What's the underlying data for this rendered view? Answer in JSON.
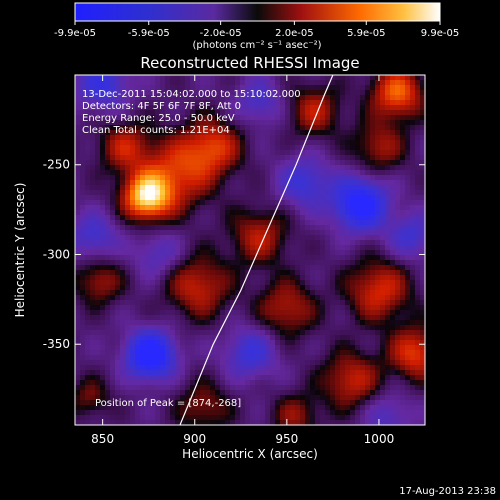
{
  "colorbar": {
    "tick_labels": [
      "-9.9e-05",
      "-5.9e-05",
      "-2.0e-05",
      "2.0e-05",
      "5.9e-05",
      "9.9e-05"
    ],
    "tick_values": [
      -9.9e-05,
      -5.9e-05,
      -2e-05,
      2e-05,
      5.9e-05,
      9.9e-05
    ],
    "range": [
      -9.9e-05,
      9.9e-05
    ],
    "unit_label": "(photons cm⁻² s⁻¹ asec⁻²)"
  },
  "chart_data": {
    "type": "heatmap",
    "title": "Reconstructed RHESSI Image",
    "xlabel": "Heliocentric X (arcsec)",
    "ylabel": "Heliocentric Y (arcsec)",
    "xlim": [
      835,
      1025
    ],
    "ylim": [
      -395,
      -200
    ],
    "xticks": [
      850,
      900,
      950,
      1000
    ],
    "xtick_labels": [
      "850",
      "900",
      "950",
      "1000"
    ],
    "yticks": [
      -250,
      -300,
      -350
    ],
    "ytick_labels": [
      "-250",
      "-300",
      "-350"
    ],
    "info_lines": [
      "13-Dec-2011 15:04:02.000 to 15:10:02.000",
      "Detectors: 4F 5F 6F 7F 8F, Att 0",
      "Energy Range: 25.0 - 50.0 keV",
      "Clean     Total counts: 1.21E+04"
    ],
    "peak_label": "Position of Peak = [874,-268]",
    "peak": [
      874,
      -268
    ],
    "limb_curve": [
      [
        892,
        -395
      ],
      [
        910,
        -350
      ],
      [
        925,
        -320
      ],
      [
        940,
        -285
      ],
      [
        955,
        -250
      ],
      [
        970,
        -212
      ],
      [
        975,
        -200
      ]
    ],
    "blobs": [
      {
        "x": 874,
        "y": -268,
        "amp": 1.0,
        "sigma": 9
      },
      {
        "x": 890,
        "y": -255,
        "amp": 0.55,
        "sigma": 14
      },
      {
        "x": 862,
        "y": -240,
        "amp": 0.45,
        "sigma": 10
      },
      {
        "x": 910,
        "y": -240,
        "amp": 0.55,
        "sigma": 11
      },
      {
        "x": 935,
        "y": -290,
        "amp": 0.45,
        "sigma": 11
      },
      {
        "x": 902,
        "y": -318,
        "amp": 0.5,
        "sigma": 12
      },
      {
        "x": 950,
        "y": -330,
        "amp": 0.45,
        "sigma": 11
      },
      {
        "x": 1000,
        "y": -320,
        "amp": 0.55,
        "sigma": 12
      },
      {
        "x": 1020,
        "y": -355,
        "amp": 0.6,
        "sigma": 10
      },
      {
        "x": 985,
        "y": -370,
        "amp": 0.5,
        "sigma": 11
      },
      {
        "x": 1010,
        "y": -210,
        "amp": 0.7,
        "sigma": 10
      },
      {
        "x": 965,
        "y": -220,
        "amp": 0.45,
        "sigma": 10
      },
      {
        "x": 1000,
        "y": -240,
        "amp": 0.4,
        "sigma": 10
      },
      {
        "x": 848,
        "y": -315,
        "amp": 0.4,
        "sigma": 9
      },
      {
        "x": 905,
        "y": -385,
        "amp": 0.35,
        "sigma": 10
      },
      {
        "x": 955,
        "y": -390,
        "amp": 0.35,
        "sigma": 9
      },
      {
        "x": 843,
        "y": -380,
        "amp": 0.3,
        "sigma": 8
      },
      {
        "x": 876,
        "y": -356,
        "amp": -1.0,
        "sigma": 9
      },
      {
        "x": 990,
        "y": -272,
        "amp": -0.9,
        "sigma": 10
      },
      {
        "x": 850,
        "y": -205,
        "amp": -0.5,
        "sigma": 10
      },
      {
        "x": 960,
        "y": -260,
        "amp": -0.45,
        "sigma": 10
      },
      {
        "x": 930,
        "y": -355,
        "amp": -0.45,
        "sigma": 10
      },
      {
        "x": 845,
        "y": -290,
        "amp": -0.4,
        "sigma": 9
      },
      {
        "x": 1018,
        "y": -290,
        "amp": -0.4,
        "sigma": 9
      },
      {
        "x": 935,
        "y": -215,
        "amp": -0.35,
        "sigma": 9
      },
      {
        "x": 880,
        "y": -300,
        "amp": -0.3,
        "sigma": 9
      },
      {
        "x": 1005,
        "y": -390,
        "amp": -0.3,
        "sigma": 9
      }
    ]
  },
  "timestamp": "17-Aug-2013 23:38"
}
